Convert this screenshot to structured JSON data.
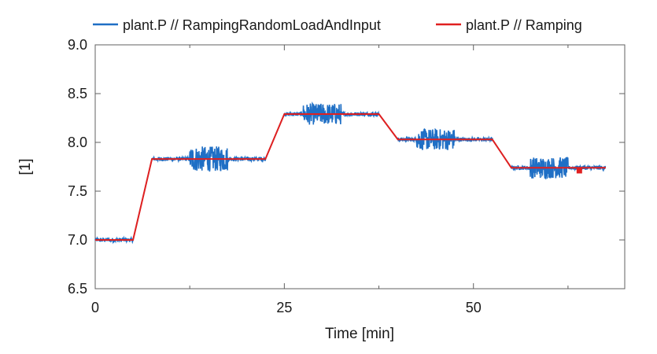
{
  "chart_data": {
    "type": "line",
    "xlabel": "Time [min]",
    "ylabel": "[1]",
    "xlim": [
      0,
      70
    ],
    "ylim": [
      6.5,
      9.0
    ],
    "x_ticks": [
      {
        "value": 0,
        "label": "0"
      },
      {
        "value": 25,
        "label": "25"
      },
      {
        "value": 50,
        "label": "50"
      }
    ],
    "x_minor_ticks": [
      12.5,
      37.5,
      62.5
    ],
    "y_ticks": [
      {
        "value": 6.5,
        "label": "6.5"
      },
      {
        "value": 7.0,
        "label": "7.0"
      },
      {
        "value": 7.5,
        "label": "7.5"
      },
      {
        "value": 8.0,
        "label": "8.0"
      },
      {
        "value": 8.5,
        "label": "8.5"
      },
      {
        "value": 9.0,
        "label": "9.0"
      }
    ],
    "grid": false,
    "legend_position": "top",
    "series": [
      {
        "name": "plant.P // RampingRandomLoadAndInput",
        "color": "#1f6fc5",
        "x": [
          0,
          5,
          7.5,
          22.5,
          25,
          37.5,
          40,
          52.5,
          55,
          67.5
        ],
        "y": [
          7.0,
          7.0,
          7.83,
          7.83,
          8.29,
          8.29,
          8.03,
          8.03,
          7.74,
          7.74
        ],
        "noise": [
          {
            "x_range": [
              0,
              5
            ],
            "amplitude": 0.02
          },
          {
            "x_range": [
              7.5,
              22.5
            ],
            "amplitude": 0.02
          },
          {
            "x_range": [
              12.5,
              17.5
            ],
            "amplitude": 0.13
          },
          {
            "x_range": [
              25,
              37.5
            ],
            "amplitude": 0.02
          },
          {
            "x_range": [
              27.5,
              32.5
            ],
            "amplitude": 0.11
          },
          {
            "x_range": [
              40,
              52.5
            ],
            "amplitude": 0.02
          },
          {
            "x_range": [
              42.5,
              47.5
            ],
            "amplitude": 0.11
          },
          {
            "x_range": [
              55,
              67.5
            ],
            "amplitude": 0.02
          },
          {
            "x_range": [
              57.5,
              62.5
            ],
            "amplitude": 0.11
          }
        ]
      },
      {
        "name": "plant.P // Ramping",
        "color": "#e02020",
        "x": [
          0,
          5,
          7.5,
          22.5,
          25,
          37.5,
          40,
          52.5,
          55,
          67.5
        ],
        "y": [
          7.0,
          7.0,
          7.83,
          7.83,
          8.29,
          8.29,
          8.03,
          8.03,
          7.74,
          7.74
        ]
      }
    ],
    "marker": {
      "x": 64,
      "y": 7.71,
      "color": "#e02020"
    }
  }
}
